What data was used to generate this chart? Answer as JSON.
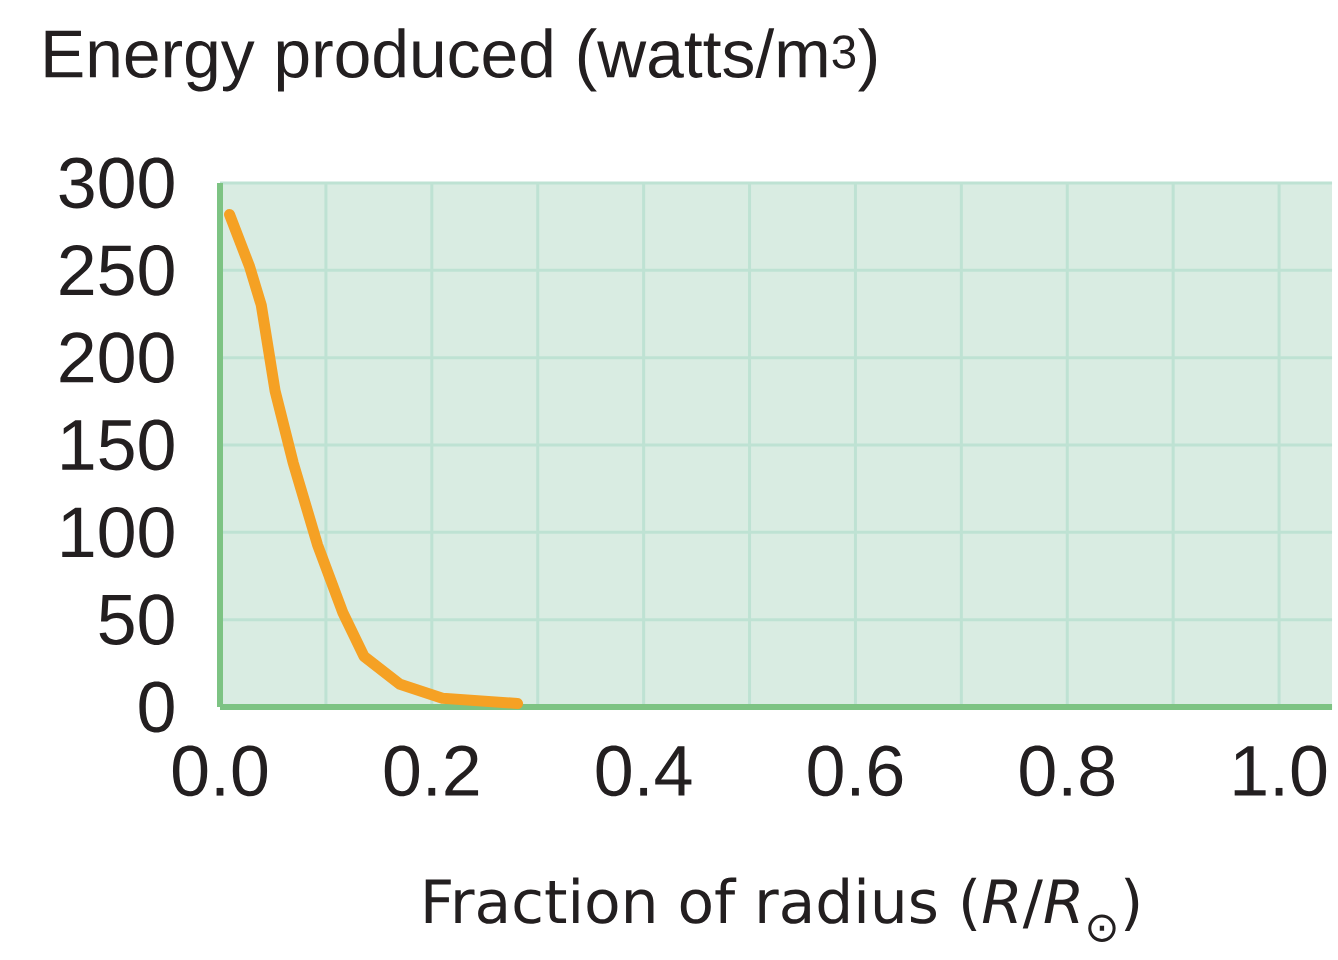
{
  "chart_data": {
    "type": "line",
    "ylabel": "Energy produced (watts/m$^{3}$)",
    "xlabel": "Fraction of radius (*R*/*R*$_{⊙}$)",
    "x": [
      0.009,
      0.028,
      0.039,
      0.052,
      0.069,
      0.092,
      0.116,
      0.136,
      0.17,
      0.21,
      0.281
    ],
    "series": [
      {
        "color": "#f5a124",
        "values": [
          282,
          252,
          230,
          181,
          140,
          93,
          54,
          29,
          13,
          5,
          2
        ]
      }
    ],
    "xlim": [
      0,
      1.05
    ],
    "ylim": [
      0,
      300
    ],
    "xticks": [
      {
        "value": 0,
        "label": "0.0"
      },
      {
        "value": 0.1,
        "label": null
      },
      {
        "value": 0.2,
        "label": "0.2"
      },
      {
        "value": 0.3,
        "label": null
      },
      {
        "value": 0.4,
        "label": "0.4"
      },
      {
        "value": 0.5,
        "label": null
      },
      {
        "value": 0.6,
        "label": "0.6"
      },
      {
        "value": 0.7,
        "label": null
      },
      {
        "value": 0.8,
        "label": "0.8"
      },
      {
        "value": 0.9,
        "label": null
      },
      {
        "value": 1.0,
        "label": "1.0"
      }
    ],
    "yticks": [
      0,
      50,
      100,
      150,
      200,
      250,
      300
    ],
    "grid": true
  }
}
